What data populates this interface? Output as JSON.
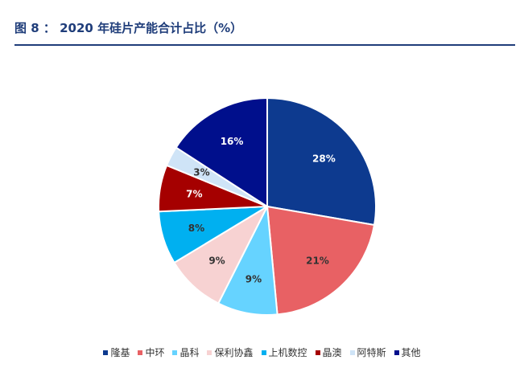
{
  "figure": {
    "title": "图 8 ： 2020 年硅片产能合计占比（%）"
  },
  "chart_data": {
    "type": "pie",
    "title": "图 8 ： 2020 年硅片产能合计占比（%）",
    "unit": "%",
    "start_angle": "12 o'clock, clockwise",
    "legend_position": "bottom",
    "slices": [
      {
        "name": "隆基",
        "value": 28,
        "label": "28%",
        "color": "#0d3a8f",
        "label_color": "#ffffff"
      },
      {
        "name": "中环",
        "value": 21,
        "label": "21%",
        "color": "#e86164",
        "label_color": "#333333"
      },
      {
        "name": "晶科",
        "value": 9,
        "label": "9%",
        "color": "#66d3ff",
        "label_color": "#333333"
      },
      {
        "name": "保利协鑫",
        "value": 9,
        "label": "9%",
        "color": "#f7d2d2",
        "label_color": "#333333"
      },
      {
        "name": "上机数控",
        "value": 8,
        "label": "8%",
        "color": "#00b0f0",
        "label_color": "#333333"
      },
      {
        "name": "晶澳",
        "value": 7,
        "label": "7%",
        "color": "#a50000",
        "label_color": "#ffffff"
      },
      {
        "name": "阿特斯",
        "value": 3,
        "label": "3%",
        "color": "#cfe4f7",
        "label_color": "#333333"
      },
      {
        "name": "其他",
        "value": 16,
        "label": "16%",
        "color": "#000f8c",
        "label_color": "#ffffff"
      }
    ]
  }
}
